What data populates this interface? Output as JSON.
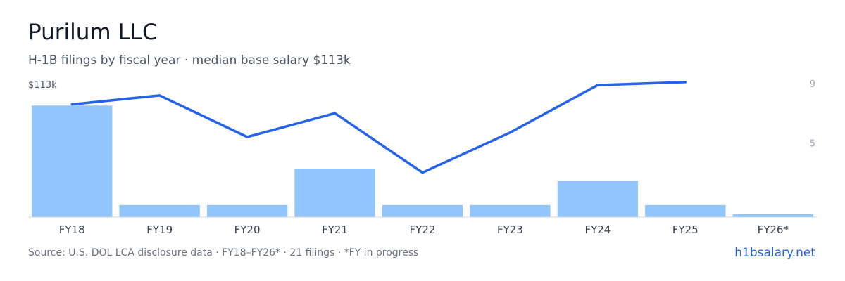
{
  "header": {
    "title": "Purilum LLC",
    "subtitle": "H-1B filings by fiscal year · median base salary $113k"
  },
  "footer": {
    "source": "Source: U.S. DOL LCA disclosure data · FY18–FY26* · 21 filings · *FY in progress",
    "brand": "h1bsalary.net"
  },
  "colors": {
    "bar": "#93c5fd",
    "line": "#2563eb",
    "axis": "#d1d5db",
    "tick": "#374151",
    "right_tick": "#9ca3af"
  },
  "chart_data": {
    "type": "bar",
    "categories": [
      "FY18",
      "FY19",
      "FY20",
      "FY21",
      "FY22",
      "FY23",
      "FY24",
      "FY25",
      "FY26*"
    ],
    "series": [
      {
        "type": "bar",
        "values": [
          9.2,
          1.0,
          1.0,
          4.0,
          1.0,
          1.0,
          3.0,
          1.0,
          0.25
        ]
      },
      {
        "type": "line",
        "values": [
          7.6,
          8.2,
          5.4,
          7.0,
          3.0,
          5.7,
          8.9,
          9.1,
          null
        ]
      }
    ],
    "left_axis_label": "$113k",
    "right_ticks": [
      9,
      5
    ],
    "right_ylim": [
      0,
      9
    ],
    "bar_ylim": [
      0,
      9.8
    ],
    "grid": false,
    "legend": "none"
  }
}
